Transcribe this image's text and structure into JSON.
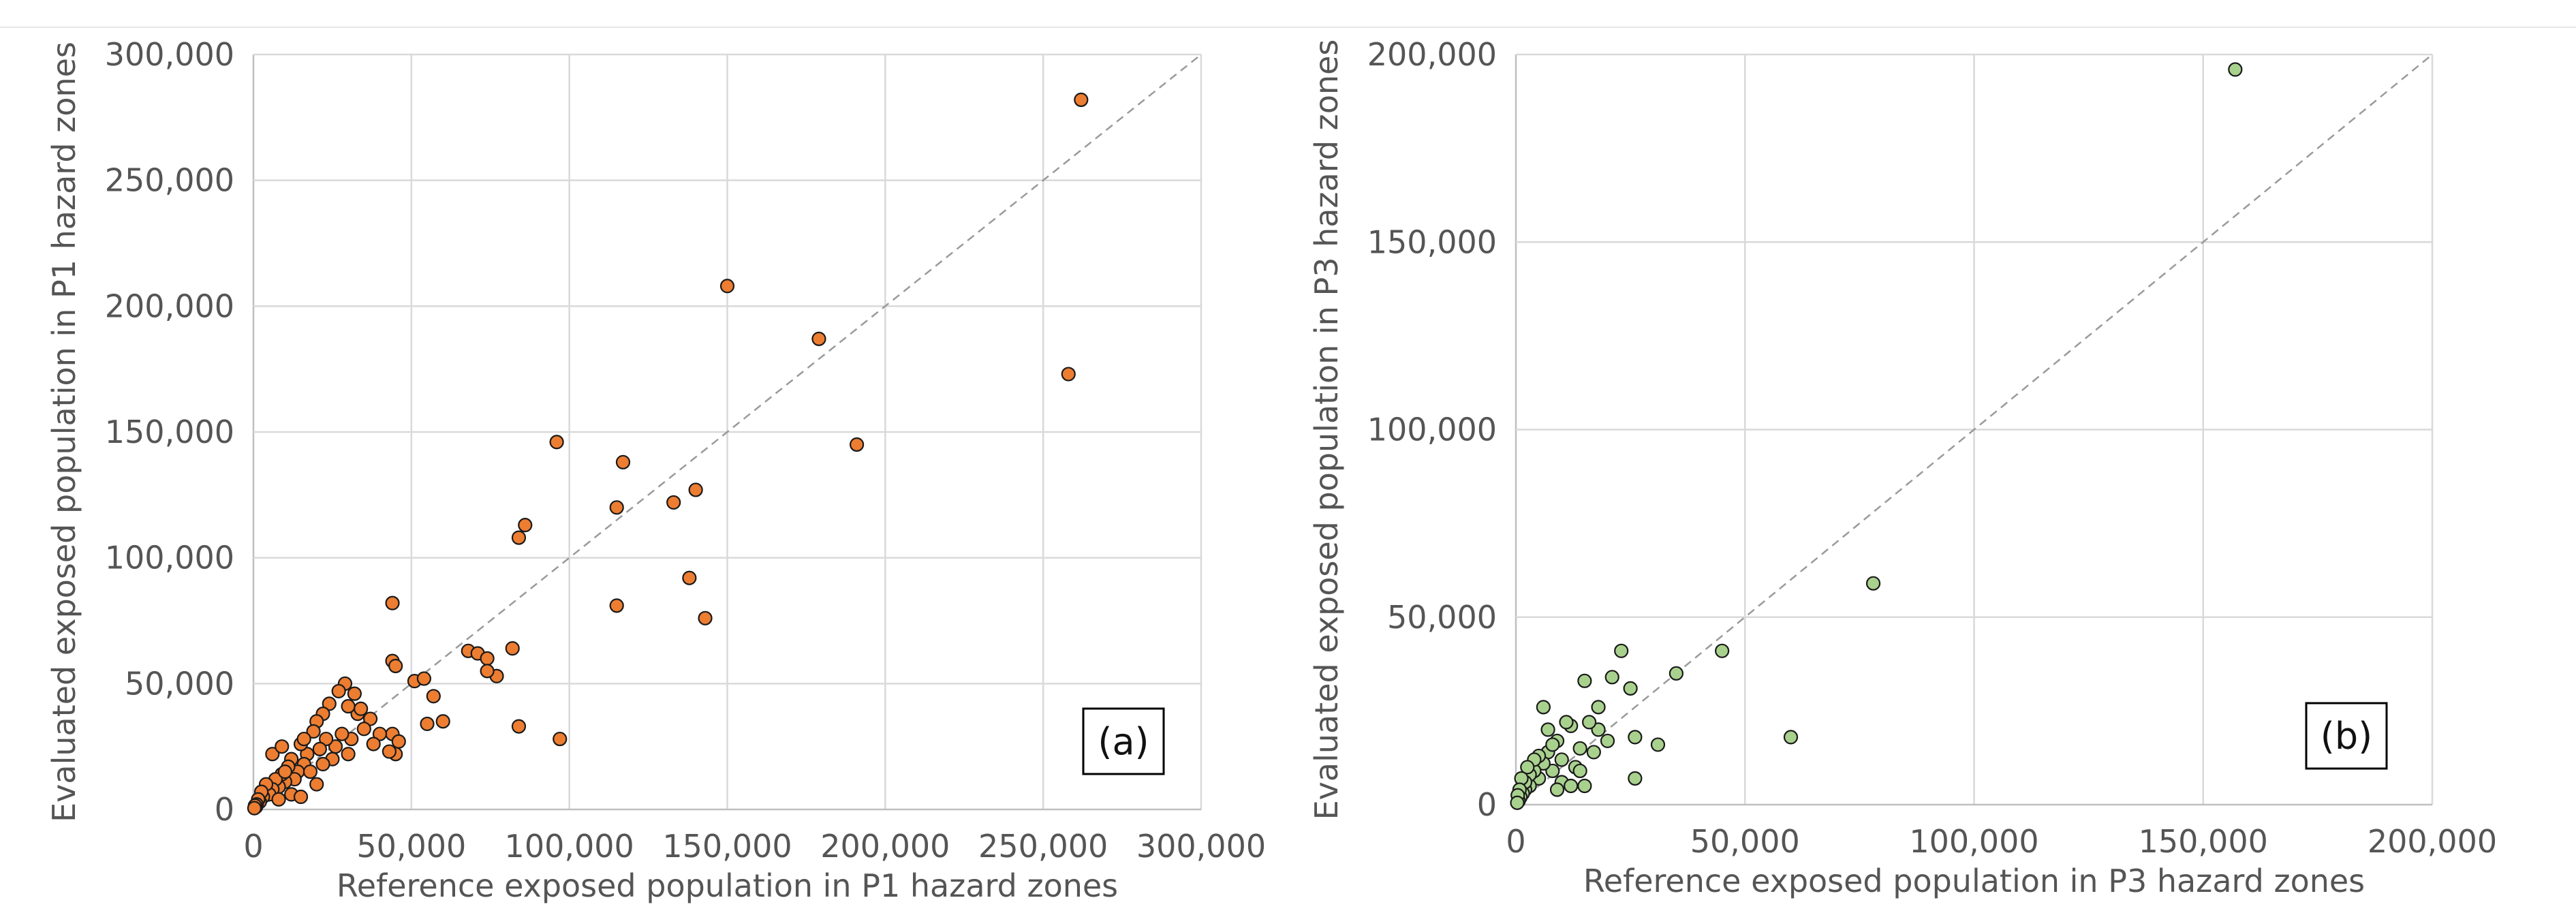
{
  "chart_data": [
    {
      "type": "scatter",
      "panel_label": "(a)",
      "xlabel": "Reference exposed population in P1 hazard zones",
      "ylabel": "Evaluated exposed population in P1 hazard zones",
      "xlim": [
        0,
        300000
      ],
      "ylim": [
        0,
        300000
      ],
      "xticks": [
        0,
        50000,
        100000,
        150000,
        200000,
        250000,
        300000
      ],
      "yticks": [
        0,
        50000,
        100000,
        150000,
        200000,
        250000,
        300000
      ],
      "xtick_labels": [
        "0",
        "50,000",
        "100,000",
        "150,000",
        "200,000",
        "250,000",
        "300,000"
      ],
      "ytick_labels": [
        "0",
        "50,000",
        "100,000",
        "150,000",
        "200,000",
        "250,000",
        "300,000"
      ],
      "reference_line": "y = x",
      "marker_color": "#ed7d31",
      "points": [
        [
          262000,
          282000
        ],
        [
          150000,
          208000
        ],
        [
          179000,
          187000
        ],
        [
          258000,
          173000
        ],
        [
          191000,
          145000
        ],
        [
          96000,
          146000
        ],
        [
          117000,
          138000
        ],
        [
          115000,
          120000
        ],
        [
          133000,
          122000
        ],
        [
          140000,
          127000
        ],
        [
          86000,
          113000
        ],
        [
          84000,
          108000
        ],
        [
          138000,
          92000
        ],
        [
          143000,
          76000
        ],
        [
          115000,
          81000
        ],
        [
          84000,
          33000
        ],
        [
          97000,
          28000
        ],
        [
          44000,
          82000
        ],
        [
          44000,
          59000
        ],
        [
          45000,
          57000
        ],
        [
          68000,
          63000
        ],
        [
          71000,
          62000
        ],
        [
          82000,
          64000
        ],
        [
          74000,
          60000
        ],
        [
          77000,
          53000
        ],
        [
          74000,
          55000
        ],
        [
          51000,
          51000
        ],
        [
          54000,
          52000
        ],
        [
          57000,
          45000
        ],
        [
          60000,
          35000
        ],
        [
          55000,
          34000
        ],
        [
          44000,
          30000
        ],
        [
          46000,
          27000
        ],
        [
          45000,
          22000
        ],
        [
          43000,
          23000
        ],
        [
          40000,
          30000
        ],
        [
          37000,
          36000
        ],
        [
          33000,
          38000
        ],
        [
          30000,
          41000
        ],
        [
          29000,
          50000
        ],
        [
          32000,
          46000
        ],
        [
          27000,
          47000
        ],
        [
          24000,
          42000
        ],
        [
          22000,
          38000
        ],
        [
          20000,
          35000
        ],
        [
          35000,
          32000
        ],
        [
          31000,
          28000
        ],
        [
          28000,
          30000
        ],
        [
          26000,
          25000
        ],
        [
          23000,
          28000
        ],
        [
          21000,
          24000
        ],
        [
          19000,
          31000
        ],
        [
          17000,
          22000
        ],
        [
          15000,
          26000
        ],
        [
          16000,
          18000
        ],
        [
          14000,
          15000
        ],
        [
          12000,
          20000
        ],
        [
          13000,
          12000
        ],
        [
          11000,
          17000
        ],
        [
          10000,
          11000
        ],
        [
          9000,
          14000
        ],
        [
          8000,
          9000
        ],
        [
          7000,
          12000
        ],
        [
          6000,
          8000
        ],
        [
          5000,
          6000
        ],
        [
          4000,
          10000
        ],
        [
          3000,
          5000
        ],
        [
          2500,
          7000
        ],
        [
          2000,
          3000
        ],
        [
          1500,
          4000
        ],
        [
          1000,
          2000
        ],
        [
          800,
          1000
        ],
        [
          500,
          1500
        ],
        [
          300,
          500
        ],
        [
          6000,
          22000
        ],
        [
          10000,
          15000
        ],
        [
          18000,
          15000
        ],
        [
          25000,
          20000
        ],
        [
          22000,
          18000
        ],
        [
          38000,
          26000
        ],
        [
          12000,
          6000
        ],
        [
          15000,
          5000
        ],
        [
          8000,
          4000
        ],
        [
          20000,
          10000
        ],
        [
          30000,
          22000
        ],
        [
          9000,
          25000
        ],
        [
          16000,
          28000
        ],
        [
          34000,
          40000
        ]
      ]
    },
    {
      "type": "scatter",
      "panel_label": "(b)",
      "xlabel": "Reference exposed population in P3 hazard zones",
      "ylabel": "Evaluated exposed population in P3 hazard zones",
      "xlim": [
        0,
        200000
      ],
      "ylim": [
        0,
        200000
      ],
      "xticks": [
        0,
        50000,
        100000,
        150000,
        200000
      ],
      "yticks": [
        0,
        50000,
        100000,
        150000,
        200000
      ],
      "xtick_labels": [
        "0",
        "50,000",
        "100,000",
        "150,000",
        "200,000"
      ],
      "ytick_labels": [
        "0",
        "50,000",
        "100,000",
        "150,000",
        "200,000"
      ],
      "reference_line": "y = x",
      "marker_color": "#a9d18e",
      "points": [
        [
          157000,
          196000
        ],
        [
          78000,
          59000
        ],
        [
          60000,
          18000
        ],
        [
          45000,
          41000
        ],
        [
          35000,
          35000
        ],
        [
          31000,
          16000
        ],
        [
          26000,
          18000
        ],
        [
          26000,
          7000
        ],
        [
          25000,
          31000
        ],
        [
          23000,
          41000
        ],
        [
          21000,
          34000
        ],
        [
          18000,
          20000
        ],
        [
          18000,
          26000
        ],
        [
          16000,
          22000
        ],
        [
          15000,
          33000
        ],
        [
          14000,
          15000
        ],
        [
          13000,
          10000
        ],
        [
          12000,
          21000
        ],
        [
          11000,
          22000
        ],
        [
          10000,
          12000
        ],
        [
          10000,
          6000
        ],
        [
          9000,
          17000
        ],
        [
          8000,
          9000
        ],
        [
          7000,
          14000
        ],
        [
          7000,
          20000
        ],
        [
          6000,
          26000
        ],
        [
          6000,
          11000
        ],
        [
          5000,
          13000
        ],
        [
          5000,
          7000
        ],
        [
          4000,
          9000
        ],
        [
          4000,
          12000
        ],
        [
          3000,
          5000
        ],
        [
          3000,
          8000
        ],
        [
          2500,
          10000
        ],
        [
          2000,
          4000
        ],
        [
          2000,
          6000
        ],
        [
          1500,
          3000
        ],
        [
          1200,
          7000
        ],
        [
          1000,
          2000
        ],
        [
          800,
          4000
        ],
        [
          600,
          1000
        ],
        [
          400,
          2500
        ],
        [
          300,
          500
        ],
        [
          12000,
          5000
        ],
        [
          17000,
          14000
        ],
        [
          20000,
          17000
        ],
        [
          9000,
          4000
        ],
        [
          14000,
          9000
        ],
        [
          8000,
          16000
        ],
        [
          15000,
          5000
        ]
      ]
    }
  ]
}
